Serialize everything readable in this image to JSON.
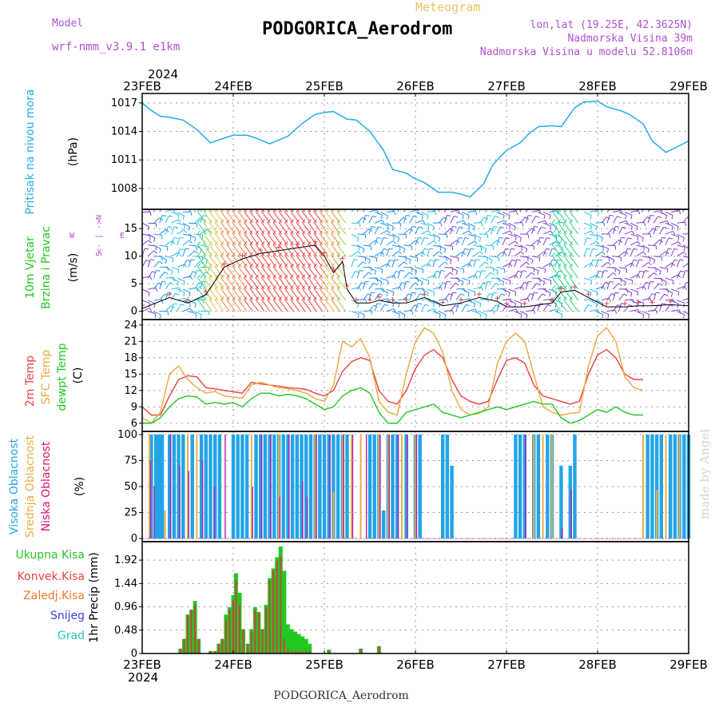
{
  "header": {
    "model_label": "Model",
    "model_name": "wrf-nmm_v3.9.1 e1km",
    "meteogram": "Meteogram",
    "station": "PODGORICA_Aerodrom",
    "lonlat": "lon,lat (19.25E, 42.3625N)",
    "elev": "Nadmorska Visina 39m",
    "elev_model": "Nadmorska Visina u modelu 52.8106m",
    "year_top": "2024",
    "year_bottom": "2024",
    "footer_station": "PODGORICA_Aerodrom",
    "watermark": "made by Angel"
  },
  "colors": {
    "pressure": "#22aee8",
    "temp2m": "#ee4040",
    "sfctemp": "#e8a840",
    "dewpt": "#22c822",
    "high_cloud": "#22a4e8",
    "mid_cloud": "#e8b040",
    "low_cloud": "#b020b0",
    "precip_total": "#22c822",
    "precip_conv": "#d04040",
    "wind_gust": "#000000",
    "wind_marker": "#ee4040"
  },
  "chart_data": [
    {
      "id": "pressure",
      "type": "line",
      "ylabel_lines": [
        "Pritisak na nivou mora",
        "(hPa)"
      ],
      "yticks": [
        1008,
        1011,
        1014,
        1017
      ],
      "ylim": [
        1005.8,
        1018
      ],
      "x": [
        0,
        0.1,
        0.2,
        0.3,
        0.45,
        0.6,
        0.75,
        0.9,
        1.0,
        1.15,
        1.25,
        1.4,
        1.6,
        1.75,
        1.9,
        2.0,
        2.1,
        2.25,
        2.35,
        2.5,
        2.65,
        2.75,
        2.9,
        3.0,
        3.1,
        3.25,
        3.4,
        3.5,
        3.6,
        3.75,
        3.85,
        4.0,
        4.15,
        4.25,
        4.35,
        4.5,
        4.6,
        4.75,
        4.85,
        5.0,
        5.1,
        5.25,
        5.35,
        5.5,
        5.6,
        5.75,
        5.9,
        6.0
      ],
      "series": [
        {
          "values": [
            1017,
            1016.2,
            1015.6,
            1015.5,
            1015.2,
            1014.2,
            1012.8,
            1013.3,
            1013.6,
            1013.6,
            1013.3,
            1012.7,
            1013.5,
            1014.8,
            1015.8,
            1016.0,
            1016.1,
            1015.3,
            1015.2,
            1014.0,
            1012.0,
            1010.0,
            1009.6,
            1009.0,
            1008.6,
            1007.6,
            1007.6,
            1007.4,
            1007.1,
            1008.5,
            1010.5,
            1012.0,
            1012.8,
            1013.8,
            1014.5,
            1014.6,
            1014.5,
            1016.5,
            1017.1,
            1017.2,
            1016.6,
            1016.2,
            1015.8,
            1014.8,
            1013.0,
            1011.8,
            1012.5,
            1013.0
          ]
        }
      ]
    },
    {
      "id": "wind",
      "type": "barbs",
      "ylabel_lines": [
        "10m Vjetar",
        "Brzina i Pravac",
        "(m/s)"
      ],
      "compass": [
        "N",
        "<- | ->",
        "W",
        "E",
        "S"
      ],
      "yticks": [
        0,
        5,
        10,
        15
      ],
      "ylim": [
        -1.5,
        18.5
      ],
      "gust_x": [
        0,
        0.3,
        0.5,
        0.7,
        0.9,
        1.1,
        1.3,
        1.5,
        1.7,
        1.9,
        2.0,
        2.1,
        2.2,
        2.25,
        2.35,
        2.5,
        2.6,
        2.75,
        2.9,
        3.1,
        3.3,
        3.5,
        3.7,
        3.9,
        4.0,
        4.2,
        4.5,
        4.6,
        4.75,
        4.9,
        5.1,
        5.3,
        5.45,
        5.6,
        5.8,
        6.0
      ],
      "gust_y": [
        0.5,
        2.5,
        1.5,
        3.0,
        8.0,
        9.5,
        10.5,
        11.0,
        11.5,
        12.0,
        10.0,
        7.0,
        9.0,
        4.0,
        1.5,
        1.5,
        2.0,
        1.5,
        1.5,
        2.5,
        1.0,
        1.5,
        2.5,
        1.8,
        0.8,
        0.8,
        1.5,
        3.5,
        3.8,
        2.5,
        0.8,
        0.8,
        1.0,
        1.0,
        1.2,
        1.0
      ]
    },
    {
      "id": "temperature",
      "type": "line",
      "ylabel_lines": [
        "2m Temp",
        "SFC Temp",
        "dewpt Temp",
        "(C)"
      ],
      "yticks": [
        6,
        9,
        12,
        15,
        18,
        21,
        24
      ],
      "ylim": [
        4.5,
        25
      ],
      "x": [
        0,
        0.1,
        0.2,
        0.3,
        0.4,
        0.5,
        0.6,
        0.7,
        0.8,
        0.9,
        1.0,
        1.1,
        1.2,
        1.3,
        1.4,
        1.5,
        1.6,
        1.7,
        1.8,
        1.9,
        2.0,
        2.1,
        2.2,
        2.3,
        2.4,
        2.5,
        2.6,
        2.7,
        2.8,
        2.9,
        3.0,
        3.1,
        3.2,
        3.3,
        3.4,
        3.5,
        3.6,
        3.7,
        3.8,
        3.9,
        4.0,
        4.1,
        4.2,
        4.3,
        4.4,
        4.5,
        4.6,
        4.7,
        4.8,
        4.9,
        5.0,
        5.1,
        5.2,
        5.3,
        5.4,
        5.5,
        5.6,
        5.7,
        5.8,
        5.9,
        6.0
      ],
      "series": [
        {
          "name": "2m Temp",
          "values": [
            9,
            7.5,
            7.5,
            11,
            14,
            14.7,
            14.5,
            12.5,
            12.3,
            12.0,
            11.8,
            11.5,
            13.5,
            13.2,
            13.0,
            12.8,
            12.5,
            12.4,
            12.2,
            11.5,
            11.0,
            12.0,
            15.5,
            17.3,
            18.0,
            17.5,
            12.0,
            10.0,
            9.5,
            12.0,
            16.0,
            18.5,
            19.5,
            18.0,
            14.0,
            11.0,
            10.0,
            9.5,
            10.0,
            14.0,
            17.5,
            18.0,
            17.0,
            13.0,
            11.0,
            10.5,
            10.0,
            9.5,
            10.0,
            15.0,
            18.5,
            19.5,
            18.0,
            15.0,
            14.0,
            14.0,
            null,
            null,
            null,
            null,
            null
          ]
        },
        {
          "name": "SFC Temp",
          "values": [
            7,
            6.0,
            8.0,
            15.0,
            16.5,
            14.0,
            12.5,
            11.5,
            11.8,
            11.0,
            10.8,
            10.6,
            13.0,
            13.5,
            13.0,
            12.5,
            12.3,
            12.0,
            11.5,
            10.5,
            10.0,
            13.0,
            21.0,
            20.0,
            21.5,
            18.0,
            10.0,
            8.0,
            7.5,
            15.0,
            21.0,
            23.5,
            22.5,
            19.0,
            12.0,
            8.5,
            7.5,
            7.8,
            9.0,
            17.0,
            21.0,
            22.5,
            21.0,
            15.0,
            9.0,
            8.0,
            7.5,
            7.8,
            8.0,
            16.5,
            22.0,
            23.5,
            21.0,
            14.5,
            12.5,
            12.0,
            null,
            null,
            null,
            null,
            null
          ]
        },
        {
          "name": "dewpt Temp",
          "values": [
            6.0,
            6.0,
            7.0,
            9.0,
            10.5,
            11.0,
            10.8,
            9.5,
            9.8,
            9.5,
            9.8,
            9.0,
            10.5,
            11.5,
            11.5,
            11.0,
            11.3,
            11.0,
            10.5,
            9.5,
            8.5,
            9.0,
            11.0,
            12.0,
            12.5,
            11.5,
            8.0,
            6.0,
            6.0,
            8.0,
            8.5,
            9.0,
            9.5,
            8.0,
            7.5,
            7.0,
            7.5,
            8.0,
            8.5,
            9.0,
            8.5,
            9.0,
            9.5,
            10.0,
            9.5,
            9.5,
            7.0,
            6.0,
            6.5,
            7.5,
            8.5,
            8.0,
            9.0,
            8.0,
            7.5,
            7.5,
            null,
            null,
            null,
            null,
            null
          ]
        }
      ]
    },
    {
      "id": "clouds",
      "type": "bar",
      "ylabel_lines": [
        "Visoka Oblacnost",
        "Srednja Oblacnost",
        "Niska Oblacnost",
        "(%)"
      ],
      "yticks": [
        0,
        25,
        50,
        75,
        100
      ],
      "ylim": [
        -3,
        103
      ],
      "high_x": [
        0.1,
        0.15,
        0.18,
        0.2,
        0.22,
        0.3,
        0.35,
        0.4,
        0.45,
        0.55,
        0.65,
        0.7,
        0.75,
        0.8,
        0.85,
        1.0,
        1.05,
        1.1,
        1.15,
        1.25,
        1.3,
        1.35,
        1.4,
        1.45,
        1.5,
        1.55,
        1.6,
        1.65,
        1.7,
        1.75,
        1.8,
        1.85,
        1.9,
        1.95,
        2.0,
        2.05,
        2.1,
        2.15,
        2.2,
        2.25,
        2.5,
        2.55,
        2.6,
        2.65,
        2.7,
        2.75,
        2.8,
        2.9,
        3.0,
        3.05,
        3.3,
        3.35,
        3.4,
        4.1,
        4.15,
        4.2,
        4.3,
        4.35,
        4.45,
        4.5,
        4.6,
        4.7,
        4.75,
        5.55,
        5.6,
        5.65,
        5.7,
        5.8,
        5.85,
        5.9,
        5.95,
        6.0
      ],
      "high_v": [
        100,
        100,
        100,
        100,
        100,
        100,
        100,
        100,
        100,
        100,
        100,
        100,
        100,
        100,
        100,
        100,
        100,
        100,
        100,
        100,
        100,
        100,
        100,
        100,
        100,
        100,
        100,
        100,
        100,
        100,
        100,
        100,
        100,
        100,
        100,
        100,
        100,
        100,
        100,
        100,
        100,
        100,
        100,
        27,
        100,
        100,
        100,
        100,
        100,
        100,
        100,
        100,
        70,
        100,
        100,
        100,
        100,
        100,
        100,
        100,
        70,
        70,
        100,
        100,
        100,
        100,
        100,
        100,
        100,
        100,
        100,
        100
      ],
      "mid_x": [
        0.08,
        0.25,
        0.5,
        0.6,
        1.2,
        1.5,
        1.9,
        2.1,
        2.2,
        2.3,
        2.4,
        2.6,
        2.7,
        2.85,
        3.0,
        4.3,
        4.4,
        4.5,
        5.5,
        5.65,
        5.75,
        5.9
      ],
      "mid_v": [
        100,
        27,
        100,
        100,
        100,
        100,
        100,
        45,
        100,
        100,
        100,
        100,
        100,
        100,
        100,
        100,
        100,
        100,
        100,
        47,
        100,
        100
      ],
      "low_x": [
        0.08,
        0.12,
        0.3,
        0.4,
        0.5,
        0.65,
        0.78,
        0.9,
        1.2,
        1.3,
        1.4,
        1.5,
        1.6,
        1.75,
        1.8,
        1.9,
        2.05,
        2.2,
        2.3,
        2.45,
        2.6,
        2.7,
        2.8,
        2.9,
        3.0,
        4.2,
        4.6,
        4.7
      ],
      "low_v": [
        75,
        50,
        100,
        70,
        65,
        75,
        50,
        100,
        50,
        100,
        100,
        40,
        100,
        55,
        40,
        100,
        100,
        100,
        100,
        100,
        100,
        100,
        100,
        100,
        100,
        100,
        10,
        47
      ]
    },
    {
      "id": "precip",
      "type": "bar",
      "ylabel_lines": [
        "1hr Precip (mm)"
      ],
      "legend": [
        "Ukupna Kisa",
        "Konvek.Kisa",
        "Zaledj.Kisa",
        "Snijeg",
        "Grad"
      ],
      "yticks": [
        0,
        0.48,
        0.96,
        1.44,
        1.92
      ],
      "ylim": [
        0,
        2.3
      ],
      "bars": [
        {
          "x": 0.42,
          "total": 0.1,
          "conv": 0.1
        },
        {
          "x": 0.46,
          "total": 0.3,
          "conv": 0.3
        },
        {
          "x": 0.5,
          "total": 0.8,
          "conv": 0.8
        },
        {
          "x": 0.54,
          "total": 0.9,
          "conv": 0.9
        },
        {
          "x": 0.58,
          "total": 1.08,
          "conv": 1.0
        },
        {
          "x": 0.62,
          "total": 0.3,
          "conv": 0.3
        },
        {
          "x": 0.75,
          "total": 0.05,
          "conv": 0.05
        },
        {
          "x": 0.8,
          "total": 0.05,
          "conv": 0.05
        },
        {
          "x": 0.84,
          "total": 0.2,
          "conv": 0.2
        },
        {
          "x": 0.88,
          "total": 0.3,
          "conv": 0.3
        },
        {
          "x": 0.92,
          "total": 0.8,
          "conv": 0.7
        },
        {
          "x": 0.96,
          "total": 0.95,
          "conv": 0.9
        },
        {
          "x": 1.0,
          "total": 1.2,
          "conv": 1.1
        },
        {
          "x": 1.03,
          "total": 1.65,
          "conv": 1.5
        },
        {
          "x": 1.07,
          "total": 1.25,
          "conv": 1.0
        },
        {
          "x": 1.11,
          "total": 0.5,
          "conv": 0.5
        },
        {
          "x": 1.16,
          "total": 0.2,
          "conv": 0.2
        },
        {
          "x": 1.2,
          "total": 0.5,
          "conv": 0.45
        },
        {
          "x": 1.24,
          "total": 0.95,
          "conv": 0.9
        },
        {
          "x": 1.28,
          "total": 0.85,
          "conv": 0.85
        },
        {
          "x": 1.32,
          "total": 0.5,
          "conv": 0.5
        },
        {
          "x": 1.36,
          "total": 1.0,
          "conv": 0.95
        },
        {
          "x": 1.4,
          "total": 1.55,
          "conv": 1.5
        },
        {
          "x": 1.44,
          "total": 1.75,
          "conv": 1.7
        },
        {
          "x": 1.48,
          "total": 1.98,
          "conv": 1.9
        },
        {
          "x": 1.52,
          "total": 2.2,
          "conv": 2.0
        },
        {
          "x": 1.56,
          "total": 1.7,
          "conv": 0.3
        },
        {
          "x": 1.6,
          "total": 0.6,
          "conv": 0.1
        },
        {
          "x": 1.64,
          "total": 0.5,
          "conv": 0.05
        },
        {
          "x": 1.68,
          "total": 0.45,
          "conv": 0.05
        },
        {
          "x": 1.72,
          "total": 0.4,
          "conv": 0.05
        },
        {
          "x": 1.76,
          "total": 0.35,
          "conv": 0.05
        },
        {
          "x": 1.8,
          "total": 0.3,
          "conv": 0.05
        },
        {
          "x": 1.84,
          "total": 0.2,
          "conv": 0.05
        },
        {
          "x": 2.05,
          "total": 0.08,
          "conv": 0.05
        },
        {
          "x": 2.4,
          "total": 0.1,
          "conv": 0.1
        },
        {
          "x": 2.6,
          "total": 0.15,
          "conv": 0.15
        }
      ]
    }
  ],
  "xaxis": {
    "date_labels": [
      "23FEB",
      "24FEB",
      "25FEB",
      "26FEB",
      "27FEB",
      "28FEB",
      "29FEB"
    ]
  }
}
